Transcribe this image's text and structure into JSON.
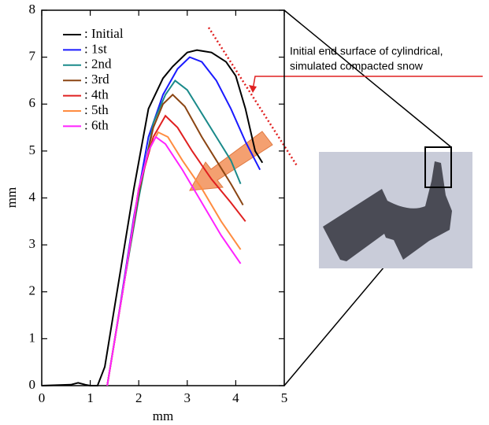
{
  "chart_data": {
    "type": "line",
    "xlabel": "mm",
    "ylabel": "mm",
    "xlim": [
      0,
      5
    ],
    "ylim": [
      0,
      8
    ],
    "xticks": [
      0,
      1,
      2,
      3,
      4,
      5
    ],
    "yticks": [
      0,
      1,
      2,
      3,
      4,
      5,
      6,
      7,
      8
    ],
    "annotation": [
      "Initial end surface of cylindrical,",
      "simulated compacted snow"
    ],
    "series": [
      {
        "name": ": Initial",
        "color": "#000000",
        "x": [
          0,
          0.6,
          0.75,
          0.9,
          1.0,
          1.15,
          1.3,
          1.6,
          1.9,
          2.2,
          2.5,
          2.7,
          3.0,
          3.2,
          3.5,
          3.8,
          4.0,
          4.2,
          4.4,
          4.55
        ],
        "values": [
          0,
          0.02,
          0.06,
          0.02,
          0,
          0,
          0.4,
          2.3,
          4.2,
          5.9,
          6.55,
          6.8,
          7.1,
          7.15,
          7.1,
          6.9,
          6.6,
          5.9,
          5.0,
          4.75
        ]
      },
      {
        "name": ": 1st",
        "color": "#1a1aff",
        "x": [
          1.35,
          1.6,
          1.9,
          2.2,
          2.5,
          2.8,
          3.05,
          3.3,
          3.6,
          3.9,
          4.2,
          4.5
        ],
        "values": [
          0,
          1.6,
          3.6,
          5.3,
          6.2,
          6.75,
          7.0,
          6.9,
          6.5,
          5.9,
          5.2,
          4.6
        ]
      },
      {
        "name": ": 2nd",
        "color": "#1a8a8a",
        "x": [
          1.35,
          1.7,
          2.0,
          2.3,
          2.55,
          2.75,
          3.0,
          3.3,
          3.6,
          3.9,
          4.1
        ],
        "values": [
          0,
          2.2,
          4.0,
          5.6,
          6.2,
          6.5,
          6.3,
          5.8,
          5.3,
          4.8,
          4.3
        ]
      },
      {
        "name": ": 3rd",
        "color": "#8b4513",
        "x": [
          1.35,
          1.7,
          2.0,
          2.3,
          2.5,
          2.7,
          2.95,
          3.3,
          3.6,
          3.9,
          4.15
        ],
        "values": [
          0,
          2.2,
          4.1,
          5.5,
          6.0,
          6.2,
          5.95,
          5.3,
          4.8,
          4.3,
          3.85
        ]
      },
      {
        "name": ": 4th",
        "color": "#e02020",
        "x": [
          1.35,
          1.7,
          2.0,
          2.3,
          2.55,
          2.8,
          3.1,
          3.5,
          3.9,
          4.2
        ],
        "values": [
          0,
          2.2,
          4.2,
          5.3,
          5.75,
          5.5,
          5.0,
          4.4,
          3.9,
          3.5
        ]
      },
      {
        "name": ": 5th",
        "color": "#ff8c40",
        "x": [
          1.35,
          1.7,
          2.0,
          2.2,
          2.4,
          2.6,
          2.9,
          3.3,
          3.7,
          4.1
        ],
        "values": [
          0,
          2.2,
          4.2,
          5.0,
          5.4,
          5.3,
          4.8,
          4.2,
          3.5,
          2.9
        ]
      },
      {
        "name": ": 6th",
        "color": "#ff22ff",
        "x": [
          1.35,
          1.7,
          2.0,
          2.2,
          2.35,
          2.55,
          2.9,
          3.3,
          3.7,
          4.1
        ],
        "values": [
          0,
          2.2,
          4.2,
          5.0,
          5.3,
          5.15,
          4.6,
          3.9,
          3.2,
          2.6
        ]
      }
    ]
  }
}
